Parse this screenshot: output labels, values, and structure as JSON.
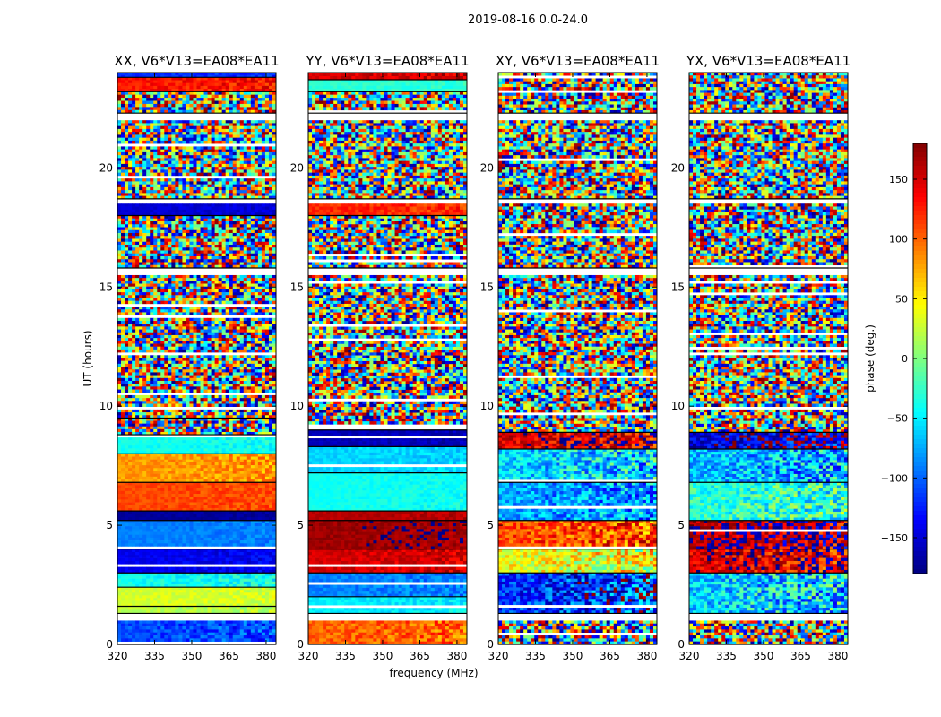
{
  "figure": {
    "suptitle": "2019-08-16 0.0-24.0"
  },
  "chart_data": [
    {
      "type": "heatmap",
      "title": "XX, V6*V13=EA08*EA11",
      "xlabel": "",
      "ylabel": "UT (hours)",
      "xlim": [
        320,
        384
      ],
      "ylim": [
        0,
        24
      ],
      "xticks": [
        320,
        335,
        350,
        365,
        380
      ],
      "yticks": [
        0,
        5,
        10,
        15,
        20
      ],
      "bands": [
        {
          "y": [
            0.0,
            1.0
          ],
          "phase": -110,
          "noise": 40
        },
        {
          "y": [
            1.3,
            1.6
          ],
          "phase": 20,
          "noise": 20
        },
        {
          "y": [
            1.6,
            2.4
          ],
          "phase": 30,
          "noise": 20
        },
        {
          "y": [
            2.4,
            3.0
          ],
          "phase": -40,
          "noise": 30
        },
        {
          "y": [
            3.0,
            4.0
          ],
          "phase": -140,
          "noise": 20
        },
        {
          "y": [
            4.0,
            5.2
          ],
          "phase": -90,
          "noise": 15
        },
        {
          "y": [
            5.2,
            5.6
          ],
          "phase": -170,
          "noise": 10
        },
        {
          "y": [
            5.6,
            6.8
          ],
          "phase": 110,
          "noise": 20
        },
        {
          "y": [
            6.8,
            8.0
          ],
          "phase": 80,
          "noise": 30
        },
        {
          "y": [
            8.0,
            8.8
          ],
          "phase": -40,
          "noise": 20
        },
        {
          "y": [
            8.8,
            9.5
          ],
          "phase": null,
          "noise": 180
        },
        {
          "y": [
            9.5,
            15.5
          ],
          "phase": null,
          "noise": 180
        },
        {
          "y": [
            15.8,
            18.0
          ],
          "phase": null,
          "noise": 180
        },
        {
          "y": [
            18.0,
            18.5
          ],
          "phase": -150,
          "noise": 15
        },
        {
          "y": [
            18.7,
            22.0
          ],
          "phase": null,
          "noise": 180
        },
        {
          "y": [
            22.3,
            23.2
          ],
          "phase": null,
          "noise": 180
        },
        {
          "y": [
            23.2,
            23.8
          ],
          "phase": 130,
          "noise": 30
        },
        {
          "y": [
            23.8,
            24.0
          ],
          "phase": -120,
          "noise": 20
        }
      ]
    },
    {
      "type": "heatmap",
      "title": "YY, V6*V13=EA08*EA11",
      "xlabel": "frequency (MHz)",
      "ylabel": "",
      "xlim": [
        320,
        384
      ],
      "ylim": [
        0,
        24
      ],
      "xticks": [
        320,
        335,
        350,
        365,
        380
      ],
      "yticks": [
        0,
        5,
        10,
        15,
        20
      ],
      "bands": [
        {
          "y": [
            0.0,
            1.0
          ],
          "phase": 100,
          "noise": 40
        },
        {
          "y": [
            1.3,
            2.0
          ],
          "phase": -50,
          "noise": 20
        },
        {
          "y": [
            2.0,
            3.0
          ],
          "phase": -90,
          "noise": 25
        },
        {
          "y": [
            3.0,
            4.0
          ],
          "phase": 150,
          "noise": 25
        },
        {
          "y": [
            4.0,
            5.2
          ],
          "phase": 170,
          "noise": 20
        },
        {
          "y": [
            5.2,
            5.6
          ],
          "phase": 160,
          "noise": 15
        },
        {
          "y": [
            5.6,
            7.2
          ],
          "phase": -40,
          "noise": 15
        },
        {
          "y": [
            7.2,
            8.3
          ],
          "phase": -60,
          "noise": 20
        },
        {
          "y": [
            8.3,
            9.0
          ],
          "phase": -160,
          "noise": 15
        },
        {
          "y": [
            9.0,
            15.5
          ],
          "phase": null,
          "noise": 180
        },
        {
          "y": [
            15.8,
            18.0
          ],
          "phase": null,
          "noise": 180
        },
        {
          "y": [
            18.0,
            18.5
          ],
          "phase": 120,
          "noise": 25
        },
        {
          "y": [
            18.7,
            22.0
          ],
          "phase": null,
          "noise": 180
        },
        {
          "y": [
            22.3,
            23.2
          ],
          "phase": null,
          "noise": 180
        },
        {
          "y": [
            23.2,
            23.7
          ],
          "phase": -30,
          "noise": 15
        },
        {
          "y": [
            23.7,
            24.0
          ],
          "phase": 150,
          "noise": 30
        }
      ]
    },
    {
      "type": "heatmap",
      "title": "XY, V6*V13=EA08*EA11",
      "xlabel": "",
      "ylabel": "",
      "xlim": [
        320,
        384
      ],
      "ylim": [
        0,
        24
      ],
      "xticks": [
        320,
        335,
        350,
        365,
        380
      ],
      "yticks": [
        0,
        5,
        10,
        15,
        20
      ],
      "bands": [
        {
          "y": [
            0.0,
            1.0
          ],
          "phase": null,
          "noise": 180
        },
        {
          "y": [
            1.3,
            3.0
          ],
          "phase": -120,
          "noise": 90
        },
        {
          "y": [
            3.0,
            4.0
          ],
          "phase": 40,
          "noise": 80
        },
        {
          "y": [
            4.0,
            5.2
          ],
          "phase": 110,
          "noise": 70
        },
        {
          "y": [
            5.2,
            6.8
          ],
          "phase": -80,
          "noise": 70
        },
        {
          "y": [
            6.8,
            8.2
          ],
          "phase": -60,
          "noise": 80
        },
        {
          "y": [
            8.2,
            8.9
          ],
          "phase": 150,
          "noise": 70
        },
        {
          "y": [
            8.9,
            15.5
          ],
          "phase": null,
          "noise": 180
        },
        {
          "y": [
            15.8,
            18.5
          ],
          "phase": null,
          "noise": 180
        },
        {
          "y": [
            18.7,
            22.0
          ],
          "phase": null,
          "noise": 180
        },
        {
          "y": [
            22.3,
            24.0
          ],
          "phase": null,
          "noise": 180
        }
      ]
    },
    {
      "type": "heatmap",
      "title": "YX, V6*V13=EA08*EA11",
      "xlabel": "",
      "ylabel": "",
      "xlim": [
        320,
        384
      ],
      "ylim": [
        0,
        24
      ],
      "xticks": [
        320,
        335,
        350,
        365,
        380
      ],
      "yticks": [
        0,
        5,
        10,
        15,
        20
      ],
      "bands": [
        {
          "y": [
            0.0,
            1.0
          ],
          "phase": null,
          "noise": 180
        },
        {
          "y": [
            1.3,
            3.0
          ],
          "phase": -60,
          "noise": 90
        },
        {
          "y": [
            3.0,
            4.0
          ],
          "phase": 150,
          "noise": 80
        },
        {
          "y": [
            4.0,
            5.2
          ],
          "phase": 170,
          "noise": 80
        },
        {
          "y": [
            5.2,
            6.8
          ],
          "phase": -30,
          "noise": 70
        },
        {
          "y": [
            6.8,
            8.2
          ],
          "phase": -70,
          "noise": 80
        },
        {
          "y": [
            8.2,
            8.9
          ],
          "phase": -150,
          "noise": 80
        },
        {
          "y": [
            8.9,
            15.5
          ],
          "phase": null,
          "noise": 180
        },
        {
          "y": [
            15.8,
            18.5
          ],
          "phase": null,
          "noise": 180
        },
        {
          "y": [
            18.7,
            22.0
          ],
          "phase": null,
          "noise": 180
        },
        {
          "y": [
            22.3,
            24.0
          ],
          "phase": null,
          "noise": 180
        }
      ]
    }
  ],
  "colorbar": {
    "label": "phase (deg.)",
    "range": [
      -180,
      180
    ],
    "ticks": [
      -150,
      -100,
      -50,
      0,
      50,
      100,
      150
    ],
    "tick_labels": [
      "−150",
      "−100",
      "−50",
      "0",
      "50",
      "100",
      "150"
    ],
    "colormap": "jet"
  }
}
